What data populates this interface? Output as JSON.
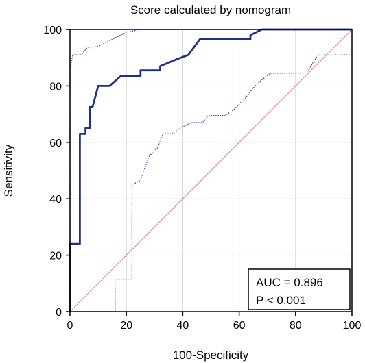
{
  "chart_data": {
    "type": "line",
    "title": "Score calculated by nomogram",
    "xlabel": "100-Specificity",
    "ylabel": "Sensitivity",
    "xlim": [
      0,
      100
    ],
    "ylim": [
      0,
      100
    ],
    "x_ticks": [
      0,
      20,
      40,
      60,
      80,
      100
    ],
    "y_ticks": [
      0,
      20,
      40,
      60,
      80,
      100
    ],
    "x_tick_labels": [
      "0",
      "20",
      "40",
      "60",
      "80",
      "100"
    ],
    "y_tick_labels": [
      "0",
      "20",
      "40",
      "60",
      "80",
      "100"
    ],
    "grid": true,
    "annotation": {
      "auc": "AUC = 0.896",
      "p": "P < 0.001",
      "placement": "bottom-right"
    },
    "series": [
      {
        "style": "solid-thick",
        "color": "#1f2f8a",
        "points": [
          [
            0,
            0
          ],
          [
            0,
            24
          ],
          [
            3.5,
            24
          ],
          [
            3.5,
            63
          ],
          [
            5.5,
            63
          ],
          [
            5.5,
            65
          ],
          [
            7,
            65
          ],
          [
            7,
            72.5
          ],
          [
            8,
            72.5
          ],
          [
            10,
            80
          ],
          [
            14,
            80
          ],
          [
            18,
            83.5
          ],
          [
            25,
            83.5
          ],
          [
            25,
            85.5
          ],
          [
            32,
            85.5
          ],
          [
            32,
            87
          ],
          [
            38,
            89.5
          ],
          [
            42,
            91
          ],
          [
            46,
            96.5
          ],
          [
            64,
            96.5
          ],
          [
            64,
            98
          ],
          [
            68,
            100
          ],
          [
            100,
            100
          ]
        ]
      },
      {
        "style": "dotted",
        "color": "#3a42b0",
        "points": [
          [
            0,
            0
          ],
          [
            0,
            86
          ],
          [
            1,
            91
          ],
          [
            4,
            91
          ],
          [
            6,
            93.5
          ],
          [
            10,
            94
          ],
          [
            14,
            96
          ],
          [
            20,
            99
          ],
          [
            25,
            100
          ],
          [
            100,
            100
          ]
        ]
      },
      {
        "style": "dotted",
        "color": "#3a42b0",
        "points": [
          [
            0,
            0
          ],
          [
            16,
            0
          ],
          [
            16,
            11.5
          ],
          [
            22,
            11.5
          ],
          [
            22,
            45
          ],
          [
            25,
            46.5
          ],
          [
            28,
            55
          ],
          [
            31,
            58
          ],
          [
            33,
            63
          ],
          [
            36,
            63
          ],
          [
            40,
            65.5
          ],
          [
            43,
            67
          ],
          [
            47,
            67
          ],
          [
            49,
            69.5
          ],
          [
            55,
            69.5
          ],
          [
            58,
            71.5
          ],
          [
            62,
            75.5
          ],
          [
            66,
            80.5
          ],
          [
            71,
            84.5
          ],
          [
            84,
            84.5
          ],
          [
            86,
            88
          ],
          [
            88,
            91
          ],
          [
            100,
            91
          ]
        ]
      },
      {
        "style": "diagonal",
        "color": "#e07a7a",
        "points": [
          [
            0,
            0
          ],
          [
            100,
            100
          ]
        ]
      }
    ]
  }
}
